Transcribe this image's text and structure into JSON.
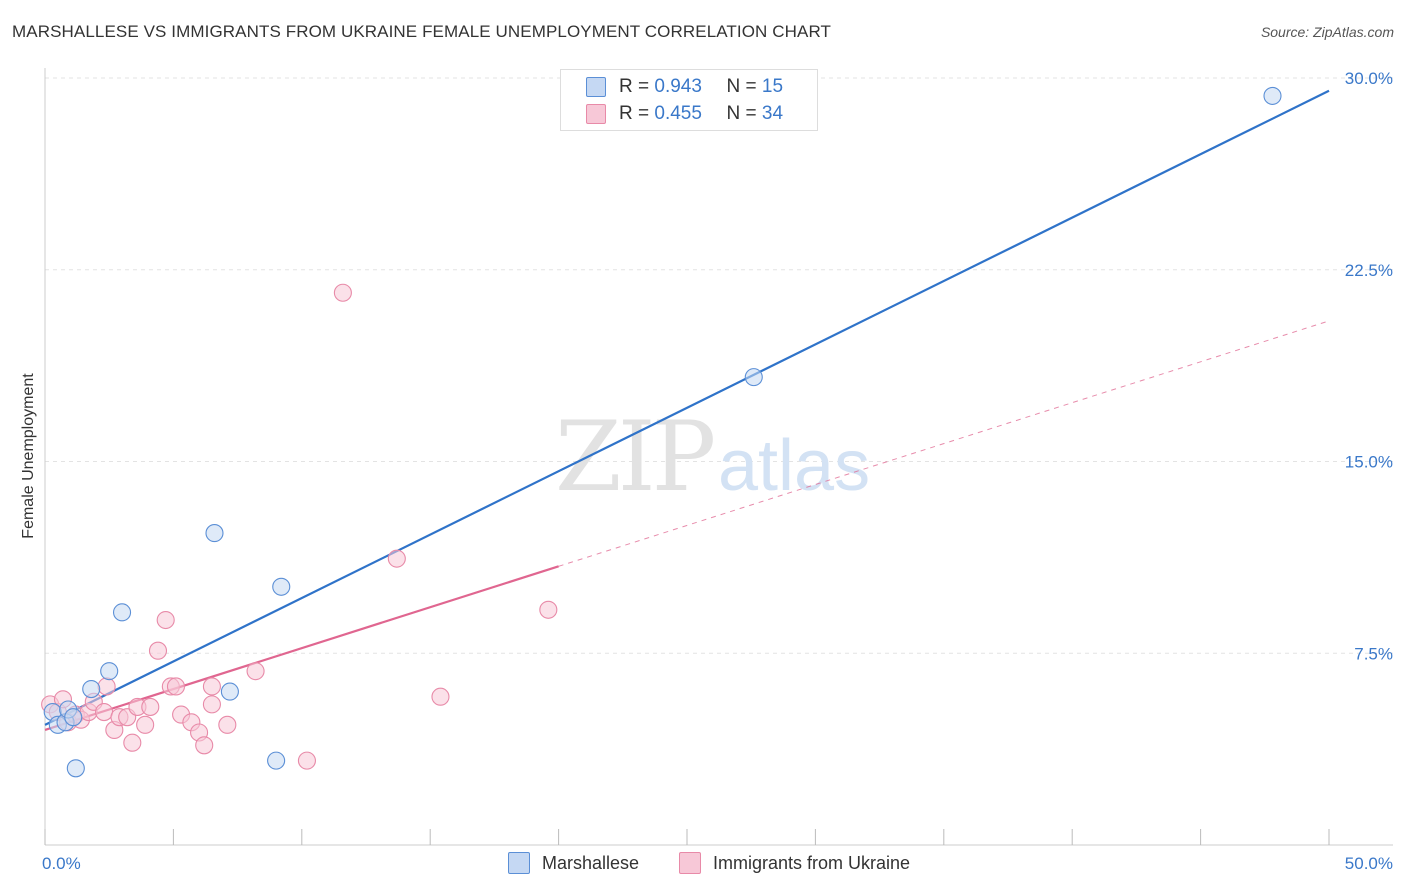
{
  "chart_data": {
    "type": "scatter",
    "title": "MARSHALLESE VS IMMIGRANTS FROM UKRAINE FEMALE UNEMPLOYMENT CORRELATION CHART",
    "source": "Source: ZipAtlas.com",
    "ylabel": "Female Unemployment",
    "xlabel": "",
    "xlim": [
      0,
      50
    ],
    "ylim": [
      0,
      30
    ],
    "x_tick_labels": [
      "0.0%",
      "50.0%"
    ],
    "y_ticks": [
      7.5,
      15.0,
      22.5,
      30.0
    ],
    "y_tick_labels": [
      "7.5%",
      "15.0%",
      "22.5%",
      "30.0%"
    ],
    "watermark": "ZIPatlas",
    "legend": {
      "r_label": "R =",
      "n_label": "N =",
      "entries": [
        {
          "r": "0.943",
          "n": "15"
        },
        {
          "r": "0.455",
          "n": "34"
        }
      ]
    },
    "series": [
      {
        "name": "Marshallese",
        "color": "#5b8fd6",
        "fill": "#c5d8f3",
        "line_color": "#2f73c9",
        "trend": {
          "x0": 0,
          "y0": 4.7,
          "x1": 50,
          "y1": 29.5,
          "dashed_from": null
        },
        "points": [
          {
            "x": 0.3,
            "y": 5.2
          },
          {
            "x": 0.5,
            "y": 4.7
          },
          {
            "x": 0.8,
            "y": 4.8
          },
          {
            "x": 0.9,
            "y": 5.3
          },
          {
            "x": 1.1,
            "y": 5.0
          },
          {
            "x": 1.2,
            "y": 3.0
          },
          {
            "x": 1.8,
            "y": 6.1
          },
          {
            "x": 2.5,
            "y": 6.8
          },
          {
            "x": 3.0,
            "y": 9.1
          },
          {
            "x": 6.6,
            "y": 12.2
          },
          {
            "x": 7.2,
            "y": 6.0
          },
          {
            "x": 9.0,
            "y": 3.3
          },
          {
            "x": 9.2,
            "y": 10.1
          },
          {
            "x": 27.6,
            "y": 18.3
          },
          {
            "x": 47.8,
            "y": 29.3
          }
        ]
      },
      {
        "name": "Immigrants from Ukraine",
        "color": "#e88aa8",
        "fill": "#f7c8d7",
        "line_color": "#e06690",
        "trend": {
          "x0": 0,
          "y0": 4.5,
          "x1": 50,
          "y1": 20.5,
          "dashed_from": 20.0
        },
        "points": [
          {
            "x": 0.2,
            "y": 5.5
          },
          {
            "x": 0.5,
            "y": 5.2
          },
          {
            "x": 0.7,
            "y": 5.7
          },
          {
            "x": 0.9,
            "y": 4.8
          },
          {
            "x": 1.2,
            "y": 5.1
          },
          {
            "x": 1.4,
            "y": 4.9
          },
          {
            "x": 1.7,
            "y": 5.2
          },
          {
            "x": 1.9,
            "y": 5.6
          },
          {
            "x": 2.3,
            "y": 5.2
          },
          {
            "x": 2.4,
            "y": 6.2
          },
          {
            "x": 2.7,
            "y": 4.5
          },
          {
            "x": 2.9,
            "y": 5.0
          },
          {
            "x": 3.2,
            "y": 5.0
          },
          {
            "x": 3.4,
            "y": 4.0
          },
          {
            "x": 3.6,
            "y": 5.4
          },
          {
            "x": 3.9,
            "y": 4.7
          },
          {
            "x": 4.1,
            "y": 5.4
          },
          {
            "x": 4.4,
            "y": 7.6
          },
          {
            "x": 4.7,
            "y": 8.8
          },
          {
            "x": 4.9,
            "y": 6.2
          },
          {
            "x": 5.1,
            "y": 6.2
          },
          {
            "x": 5.3,
            "y": 5.1
          },
          {
            "x": 5.7,
            "y": 4.8
          },
          {
            "x": 6.0,
            "y": 4.4
          },
          {
            "x": 6.2,
            "y": 3.9
          },
          {
            "x": 6.5,
            "y": 5.5
          },
          {
            "x": 6.5,
            "y": 6.2
          },
          {
            "x": 7.1,
            "y": 4.7
          },
          {
            "x": 8.2,
            "y": 6.8
          },
          {
            "x": 10.2,
            "y": 3.3
          },
          {
            "x": 11.6,
            "y": 21.6
          },
          {
            "x": 13.7,
            "y": 11.2
          },
          {
            "x": 15.4,
            "y": 5.8
          },
          {
            "x": 19.6,
            "y": 9.2
          }
        ]
      }
    ]
  }
}
